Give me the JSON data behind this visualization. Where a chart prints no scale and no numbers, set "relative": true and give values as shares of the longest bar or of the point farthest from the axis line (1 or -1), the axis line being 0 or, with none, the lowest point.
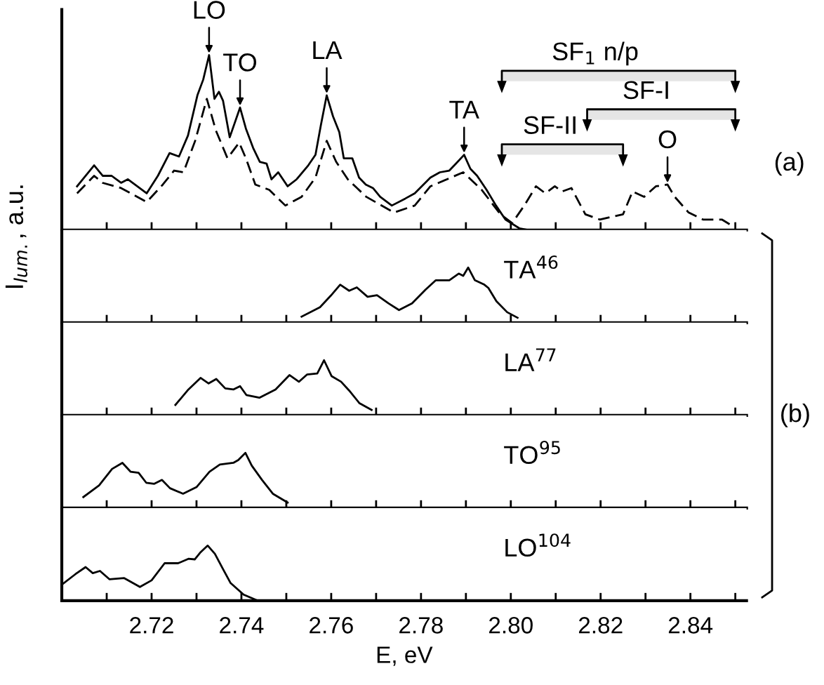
{
  "chart_data": [
    {
      "type": "line",
      "relative": true,
      "ylabel": "I$_{lum.}$, a.u.",
      "xlim": [
        2.7,
        2.8525
      ],
      "tick_labels": false,
      "xticks": [
        {
          "value": 2.71,
          "label": null
        },
        {
          "value": 2.72,
          "label": null
        },
        {
          "value": 2.73,
          "label": null
        },
        {
          "value": 2.74,
          "label": null
        },
        {
          "value": 2.75,
          "label": null
        },
        {
          "value": 2.76,
          "label": null
        },
        {
          "value": 2.77,
          "label": null
        },
        {
          "value": 2.78,
          "label": null
        },
        {
          "value": 2.79,
          "label": null
        },
        {
          "value": 2.8,
          "label": null
        },
        {
          "value": 2.81,
          "label": null
        },
        {
          "value": 2.82,
          "label": null
        },
        {
          "value": 2.83,
          "label": null
        },
        {
          "value": 2.84,
          "label": null
        },
        {
          "value": 2.85,
          "label": null
        }
      ],
      "series": [
        {
          "color": "#000000",
          "line_style": "solid",
          "x": [
            2.7034,
            2.7072,
            2.7091,
            2.7111,
            2.7132,
            2.7147,
            2.7189,
            2.7214,
            2.724,
            2.7261,
            2.7281,
            2.7302,
            2.7315,
            2.7328,
            2.734,
            2.735,
            2.7359,
            2.7374,
            2.7397,
            2.741,
            2.7426,
            2.7441,
            2.7456,
            2.7467,
            2.7482,
            2.7503,
            2.7523,
            2.7549,
            2.7565,
            2.7577,
            2.759,
            2.7604,
            2.7618,
            2.7628,
            2.7647,
            2.7662,
            2.7677,
            2.7693,
            2.7709,
            2.7735,
            2.7765,
            2.7786,
            2.7821,
            2.7842,
            2.7863,
            2.7878,
            2.7896,
            2.791,
            2.7925,
            2.7946,
            2.7967,
            2.7988,
            2.8019,
            2.804
          ],
          "values": [
            0.25,
            0.37,
            0.31,
            0.31,
            0.27,
            0.29,
            0.21,
            0.31,
            0.44,
            0.42,
            0.54,
            0.77,
            0.86,
            1.0,
            0.75,
            0.79,
            0.74,
            0.53,
            0.7,
            0.58,
            0.47,
            0.39,
            0.38,
            0.29,
            0.33,
            0.25,
            0.29,
            0.37,
            0.43,
            0.6,
            0.77,
            0.65,
            0.56,
            0.41,
            0.41,
            0.3,
            0.26,
            0.24,
            0.19,
            0.14,
            0.18,
            0.21,
            0.3,
            0.33,
            0.34,
            0.38,
            0.43,
            0.35,
            0.31,
            0.23,
            0.14,
            0.06,
            0.01,
            0.0
          ]
        },
        {
          "color": "#000000",
          "line_style": "dashed",
          "x": [
            2.7034,
            2.7072,
            2.7091,
            2.7132,
            2.7189,
            2.7225,
            2.725,
            2.7271,
            2.7297,
            2.7323,
            2.7343,
            2.7369,
            2.7395,
            2.741,
            2.7431,
            2.7462,
            2.7498,
            2.7534,
            2.7565,
            2.759,
            2.7611,
            2.7637,
            2.7678,
            2.774,
            2.7786,
            2.7821,
            2.7894,
            2.7935,
            2.7977,
            2.8003,
            2.803,
            2.8056,
            2.8077,
            2.8098,
            2.8114,
            2.8135,
            2.8166,
            2.8198,
            2.825,
            2.8271,
            2.8297,
            2.8323,
            2.8349,
            2.8365,
            2.8396,
            2.8428,
            2.847,
            2.8496
          ],
          "values": [
            0.21,
            0.31,
            0.27,
            0.24,
            0.16,
            0.26,
            0.34,
            0.33,
            0.51,
            0.75,
            0.57,
            0.41,
            0.5,
            0.41,
            0.26,
            0.23,
            0.14,
            0.19,
            0.3,
            0.51,
            0.39,
            0.29,
            0.19,
            0.1,
            0.14,
            0.25,
            0.33,
            0.23,
            0.09,
            0.04,
            0.14,
            0.25,
            0.21,
            0.25,
            0.22,
            0.24,
            0.09,
            0.06,
            0.09,
            0.22,
            0.19,
            0.25,
            0.26,
            0.19,
            0.1,
            0.06,
            0.06,
            0.02
          ]
        }
      ],
      "annotations": [
        {
          "text": "LO",
          "x": 2.7328,
          "y": 1.0
        },
        {
          "text": "TO",
          "x": 2.7397,
          "y": 0.7
        },
        {
          "text": "LA",
          "x": 2.759,
          "y": 0.77
        },
        {
          "text": "TA",
          "x": 2.7896,
          "y": 0.43
        },
        {
          "text": "O",
          "x": 2.8349,
          "y": 0.26
        },
        "(a)"
      ],
      "bands": [
        {
          "axis": "x",
          "from": 2.798,
          "to": 2.85,
          "label": "SF$_{1}$ n/p"
        },
        {
          "axis": "x",
          "from": 2.817,
          "to": 2.85,
          "label": "SF-I"
        },
        {
          "axis": "x",
          "from": 2.798,
          "to": 2.825,
          "label": "SF-II"
        }
      ]
    },
    {
      "type": "line",
      "relative": true,
      "xlim": [
        2.7,
        2.8525
      ],
      "tick_labels": false,
      "xticks": [
        {
          "value": 2.71,
          "label": null
        },
        {
          "value": 2.72,
          "label": null
        },
        {
          "value": 2.73,
          "label": null
        },
        {
          "value": 2.74,
          "label": null
        },
        {
          "value": 2.75,
          "label": null
        },
        {
          "value": 2.76,
          "label": null
        },
        {
          "value": 2.77,
          "label": null
        },
        {
          "value": 2.78,
          "label": null
        },
        {
          "value": 2.79,
          "label": null
        },
        {
          "value": 2.8,
          "label": null
        },
        {
          "value": 2.81,
          "label": null
        },
        {
          "value": 2.82,
          "label": null
        },
        {
          "value": 2.83,
          "label": null
        },
        {
          "value": 2.84,
          "label": null
        },
        {
          "value": 2.85,
          "label": null
        }
      ],
      "series": [
        {
          "name": "TA$^{46}$",
          "color": "#000000",
          "x": [
            2.7534,
            2.7575,
            2.7599,
            2.762,
            2.764,
            2.7657,
            2.7681,
            2.7702,
            2.7728,
            2.7751,
            2.778,
            2.781,
            2.7833,
            2.7863,
            2.7884,
            2.7894,
            2.7905,
            2.792,
            2.7941,
            2.795,
            2.7968,
            2.7992,
            2.8015
          ],
          "values": [
            0.11,
            0.28,
            0.49,
            0.69,
            0.58,
            0.64,
            0.47,
            0.5,
            0.35,
            0.23,
            0.35,
            0.6,
            0.77,
            0.77,
            0.89,
            0.85,
            1.0,
            0.77,
            0.69,
            0.63,
            0.39,
            0.19,
            0.09
          ]
        }
      ],
      "annotations": [
        "(b)"
      ]
    },
    {
      "type": "line",
      "relative": true,
      "xlim": [
        2.7,
        2.8525
      ],
      "tick_labels": false,
      "xticks": [
        {
          "value": 2.71,
          "label": null
        },
        {
          "value": 2.72,
          "label": null
        },
        {
          "value": 2.73,
          "label": null
        },
        {
          "value": 2.74,
          "label": null
        },
        {
          "value": 2.75,
          "label": null
        },
        {
          "value": 2.76,
          "label": null
        },
        {
          "value": 2.77,
          "label": null
        },
        {
          "value": 2.78,
          "label": null
        },
        {
          "value": 2.79,
          "label": null
        },
        {
          "value": 2.8,
          "label": null
        },
        {
          "value": 2.81,
          "label": null
        },
        {
          "value": 2.82,
          "label": null
        },
        {
          "value": 2.83,
          "label": null
        },
        {
          "value": 2.84,
          "label": null
        },
        {
          "value": 2.85,
          "label": null
        }
      ],
      "series": [
        {
          "name": "LA$^{77}$",
          "color": "#000000",
          "x": [
            2.7253,
            2.7282,
            2.7309,
            2.7327,
            2.7344,
            2.7364,
            2.7382,
            2.7397,
            2.7411,
            2.744,
            2.7476,
            2.7507,
            2.7528,
            2.7546,
            2.7569,
            2.7584,
            2.7601,
            2.7622,
            2.764,
            2.7663,
            2.769
          ],
          "values": [
            0.19,
            0.47,
            0.68,
            0.58,
            0.66,
            0.49,
            0.47,
            0.53,
            0.37,
            0.32,
            0.47,
            0.73,
            0.61,
            0.74,
            0.76,
            1.0,
            0.71,
            0.61,
            0.45,
            0.22,
            0.1
          ]
        }
      ]
    },
    {
      "type": "line",
      "relative": true,
      "xlim": [
        2.7,
        2.8525
      ],
      "tick_labels": false,
      "xticks": [
        {
          "value": 2.71,
          "label": null
        },
        {
          "value": 2.72,
          "label": null
        },
        {
          "value": 2.73,
          "label": null
        },
        {
          "value": 2.74,
          "label": null
        },
        {
          "value": 2.75,
          "label": null
        },
        {
          "value": 2.76,
          "label": null
        },
        {
          "value": 2.77,
          "label": null
        },
        {
          "value": 2.78,
          "label": null
        },
        {
          "value": 2.79,
          "label": null
        },
        {
          "value": 2.8,
          "label": null
        },
        {
          "value": 2.81,
          "label": null
        },
        {
          "value": 2.82,
          "label": null
        },
        {
          "value": 2.83,
          "label": null
        },
        {
          "value": 2.84,
          "label": null
        },
        {
          "value": 2.85,
          "label": null
        }
      ],
      "series": [
        {
          "name": "TO$^{95}$",
          "color": "#000000",
          "x": [
            2.7048,
            2.7083,
            2.7112,
            2.7135,
            2.7153,
            2.7171,
            2.7188,
            2.7206,
            2.7223,
            2.7241,
            2.727,
            2.73,
            2.7329,
            2.7352,
            2.7382,
            2.7393,
            2.7409,
            2.7423,
            2.7446,
            2.747,
            2.7503
          ],
          "values": [
            0.2,
            0.41,
            0.71,
            0.82,
            0.66,
            0.64,
            0.46,
            0.44,
            0.51,
            0.36,
            0.26,
            0.38,
            0.66,
            0.79,
            0.82,
            0.87,
            1.0,
            0.77,
            0.51,
            0.26,
            0.1
          ]
        }
      ]
    },
    {
      "type": "line",
      "relative": true,
      "xlim": [
        2.7,
        2.8525
      ],
      "tick_labels": "x",
      "xlabel": "E, eV",
      "xticks": [
        {
          "value": 2.71,
          "label": null
        },
        {
          "value": 2.72,
          "label": "2.72"
        },
        {
          "value": 2.73,
          "label": null
        },
        {
          "value": 2.74,
          "label": "2.74"
        },
        {
          "value": 2.75,
          "label": null
        },
        {
          "value": 2.76,
          "label": "2.76"
        },
        {
          "value": 2.77,
          "label": null
        },
        {
          "value": 2.78,
          "label": "2.78"
        },
        {
          "value": 2.79,
          "label": null
        },
        {
          "value": 2.8,
          "label": "2.80"
        },
        {
          "value": 2.81,
          "label": null
        },
        {
          "value": 2.82,
          "label": "2.82"
        },
        {
          "value": 2.83,
          "label": null
        },
        {
          "value": 2.84,
          "label": "2.84"
        },
        {
          "value": 2.85,
          "label": null
        }
      ],
      "series": [
        {
          "name": "LO$^{104}$",
          "color": "#000000",
          "x": [
            2.7003,
            2.703,
            2.7053,
            2.7069,
            2.7085,
            2.7106,
            2.7139,
            2.7174,
            2.72,
            2.7229,
            2.7259,
            2.7282,
            2.7296,
            2.7308,
            2.7325,
            2.7341,
            2.7358,
            2.7376,
            2.7405,
            2.7437
          ],
          "values": [
            0.31,
            0.48,
            0.61,
            0.5,
            0.54,
            0.39,
            0.41,
            0.25,
            0.37,
            0.68,
            0.68,
            0.76,
            0.75,
            0.87,
            1.0,
            0.85,
            0.59,
            0.32,
            0.11,
            0.0
          ]
        }
      ]
    }
  ]
}
